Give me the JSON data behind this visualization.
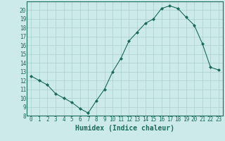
{
  "x": [
    0,
    1,
    2,
    3,
    4,
    5,
    6,
    7,
    8,
    9,
    10,
    11,
    12,
    13,
    14,
    15,
    16,
    17,
    18,
    19,
    20,
    21,
    22,
    23
  ],
  "y": [
    12.5,
    12.0,
    11.5,
    10.5,
    10.0,
    9.5,
    8.8,
    8.3,
    9.7,
    11.0,
    13.0,
    14.5,
    16.5,
    17.5,
    18.5,
    19.0,
    20.2,
    20.5,
    20.2,
    19.2,
    18.3,
    16.2,
    13.5,
    13.2
  ],
  "line_color": "#1a6b5a",
  "marker": "D",
  "marker_size": 2.0,
  "bg_color": "#cceaea",
  "grid_color": "#aacece",
  "xlabel": "Humidex (Indice chaleur)",
  "xlim": [
    -0.5,
    23.5
  ],
  "ylim": [
    8,
    21
  ],
  "yticks": [
    8,
    9,
    10,
    11,
    12,
    13,
    14,
    15,
    16,
    17,
    18,
    19,
    20
  ],
  "xticks": [
    0,
    1,
    2,
    3,
    4,
    5,
    6,
    7,
    8,
    9,
    10,
    11,
    12,
    13,
    14,
    15,
    16,
    17,
    18,
    19,
    20,
    21,
    22,
    23
  ],
  "tick_fontsize": 5.5,
  "xlabel_fontsize": 7.0
}
